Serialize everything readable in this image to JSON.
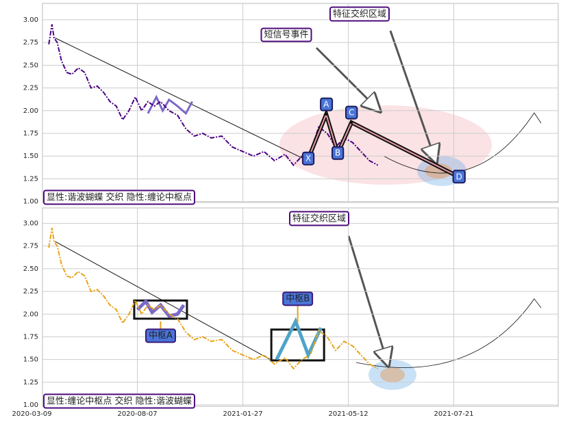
{
  "chart_data": [
    {
      "type": "line",
      "x": [
        16,
        19,
        21,
        24,
        28,
        33,
        38,
        44,
        50,
        56,
        62,
        68,
        74,
        80,
        86,
        92,
        98,
        104,
        110,
        116,
        122,
        130,
        138,
        146,
        154,
        162,
        170,
        180,
        190,
        200,
        210,
        220,
        230,
        240,
        248,
        256,
        264,
        272,
        280,
        288,
        296,
        304,
        312,
        320,
        328
      ],
      "series": [
        {
          "color": "#4b0082",
          "values": [
            2.73,
            2.95,
            2.8,
            2.75,
            2.55,
            2.42,
            2.4,
            2.47,
            2.42,
            2.25,
            2.27,
            2.2,
            2.1,
            2.05,
            1.9,
            2.0,
            2.15,
            2.0,
            2.1,
            2.05,
            2.1,
            2.0,
            1.95,
            1.8,
            1.72,
            1.75,
            1.7,
            1.72,
            1.6,
            1.55,
            1.5,
            1.55,
            1.45,
            1.52,
            1.4,
            1.5,
            1.55,
            1.82,
            1.75,
            1.6,
            1.7,
            1.65,
            1.55,
            1.45,
            1.4
          ]
        }
      ],
      "trend": {
        "x": [
          22,
          256
        ],
        "values": [
          2.8,
          1.48
        ]
      },
      "pattern": {
        "x": [
          262,
          279,
          290,
          303,
          405
        ],
        "values": [
          1.47,
          1.96,
          1.53,
          1.87,
          1.27
        ],
        "labels": [
          "X",
          "A",
          "B",
          "C",
          "D"
        ]
      },
      "pivot_zigzag": {
        "x": [
          110,
          118,
          124,
          130,
          138,
          146,
          152
        ],
        "values": [
          1.97,
          2.15,
          2.0,
          2.12,
          2.05,
          1.97,
          2.1
        ]
      },
      "annotations": [
        "特征交织区域",
        "短信号事件",
        "显性:谐波蝴蝶 交织 隐性:缠论中枢点"
      ],
      "xlim": [
        10,
        499
      ],
      "ylim": [
        0.99,
        3.18
      ],
      "yticks": [
        {
          "value": 1,
          "label": "1.00"
        },
        {
          "value": 1.25,
          "label": "1.25"
        },
        {
          "value": 1.5,
          "label": "1.50"
        },
        {
          "value": 1.75,
          "label": "1.75"
        },
        {
          "value": 2,
          "label": "2.00"
        },
        {
          "value": 2.25,
          "label": "2.25"
        },
        {
          "value": 2.5,
          "label": "2.50"
        },
        {
          "value": 2.75,
          "label": "2.75"
        },
        {
          "value": 3,
          "label": "3.00"
        }
      ],
      "grid": true
    },
    {
      "type": "line",
      "x": [
        16,
        19,
        21,
        24,
        28,
        33,
        38,
        44,
        50,
        56,
        62,
        68,
        74,
        80,
        86,
        92,
        98,
        104,
        110,
        116,
        122,
        130,
        138,
        146,
        154,
        162,
        170,
        180,
        190,
        200,
        210,
        220,
        230,
        240,
        248,
        256,
        264,
        272,
        280,
        288,
        296,
        304,
        312,
        320,
        328
      ],
      "series": [
        {
          "color": "#e8a317",
          "values": [
            2.73,
            2.95,
            2.8,
            2.75,
            2.55,
            2.42,
            2.4,
            2.47,
            2.42,
            2.25,
            2.27,
            2.2,
            2.1,
            2.05,
            1.9,
            2.0,
            2.15,
            2.0,
            2.1,
            2.05,
            2.1,
            2.0,
            1.95,
            1.8,
            1.72,
            1.75,
            1.7,
            1.72,
            1.6,
            1.55,
            1.5,
            1.55,
            1.45,
            1.52,
            1.4,
            1.5,
            1.55,
            1.82,
            1.75,
            1.6,
            1.7,
            1.65,
            1.55,
            1.45,
            1.4
          ]
        }
      ],
      "trend": {
        "x": [
          22,
          226
        ],
        "values": [
          2.8,
          1.5
        ]
      },
      "boxes": [
        {
          "label": "中枢A",
          "x": [
            97,
            147
          ],
          "y": [
            1.95,
            2.15
          ],
          "zigzag": {
            "x": [
              100,
              108,
              114,
              122,
              130,
              138,
              144
            ],
            "values": [
              2.05,
              2.14,
              2.02,
              2.1,
              1.98,
              2.0,
              2.1
            ]
          }
        },
        {
          "label": "中枢B",
          "x": [
            227,
            277
          ],
          "y": [
            1.49,
            1.83
          ],
          "zigzag": {
            "x": [
              232,
              250,
              262,
              274
            ],
            "values": [
              1.5,
              1.92,
              1.55,
              1.85
            ]
          }
        }
      ],
      "annotations": [
        "特征交织区域",
        "显性:缠论中枢点 交织 隐性:谐波蝴蝶"
      ],
      "xlim": [
        10,
        499
      ],
      "ylim": [
        0.985,
        3.17
      ],
      "xticks": [
        {
          "value": 0,
          "label": "2020-03-09"
        },
        {
          "value": 100,
          "label": "2020-08-07"
        },
        {
          "value": 200,
          "label": "2021-01-27"
        },
        {
          "value": 300,
          "label": "2021-05-12"
        },
        {
          "value": 400,
          "label": "2021-07-21"
        }
      ],
      "yticks": [
        {
          "value": 1,
          "label": "1.00"
        },
        {
          "value": 1.25,
          "label": "1.25"
        },
        {
          "value": 1.5,
          "label": "1.50"
        },
        {
          "value": 1.75,
          "label": "1.75"
        },
        {
          "value": 2,
          "label": "2.00"
        },
        {
          "value": 2.25,
          "label": "2.25"
        },
        {
          "value": 2.5,
          "label": "2.50"
        },
        {
          "value": 2.75,
          "label": "2.75"
        },
        {
          "value": 3,
          "label": "3.00"
        }
      ],
      "grid": true
    }
  ]
}
